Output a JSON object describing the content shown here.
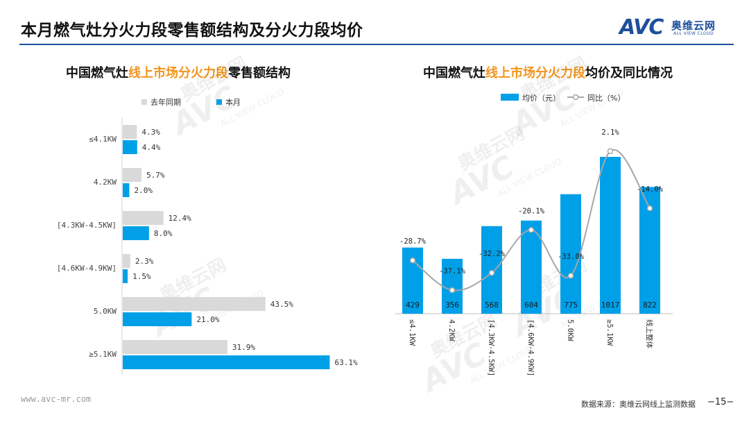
{
  "page": {
    "title": "本月燃气灶分火力段零售额结构及分火力段均价",
    "footer_url": "www.avc-mr.com",
    "footer_source": "数据来源：奥维云网线上监测数据",
    "page_number": "−15−"
  },
  "logo": {
    "mark": "AVC",
    "name_cn": "奥维云网",
    "name_en": "ALL VIEW CLOUD"
  },
  "watermark": {
    "name_cn": "奥维云网",
    "mark": "AVC",
    "name_en": "ALL VIEW CLOUD"
  },
  "colors": {
    "accent": "#00a0e9",
    "last_year": "#d9d9d9",
    "line": "#a6a6a6",
    "title_highlight": "#f2941c",
    "brand": "#1d4f9c"
  },
  "left_chart": {
    "title_pre": "中国燃气灶",
    "title_hl": "线上市场分火力段",
    "title_post": "零售额结构"
  },
  "right_chart": {
    "title_pre": "中国燃气灶",
    "title_hl": "线上市场分火力段",
    "title_post": "均价及同比情况"
  },
  "chart_data": [
    {
      "type": "bar",
      "orientation": "horizontal",
      "categories": [
        "≤4.1KW",
        "4.2KW",
        "[4.3KW-4.5KW]",
        "[4.6KW-4.9KW]",
        "5.0KW",
        "≥5.1KW"
      ],
      "series": [
        {
          "name": "去年同期",
          "values": [
            4.3,
            5.7,
            12.4,
            2.3,
            43.5,
            31.9
          ],
          "labels": [
            "4.3%",
            "5.7%",
            "12.4%",
            "2.3%",
            "43.5%",
            "31.9%"
          ],
          "color": "#d9d9d9"
        },
        {
          "name": "本月",
          "values": [
            4.4,
            2.0,
            8.0,
            1.5,
            21.0,
            63.1
          ],
          "labels": [
            "4.4%",
            "2.0%",
            "8.0%",
            "1.5%",
            "21.0%",
            "63.1%"
          ],
          "color": "#00a0e9"
        }
      ],
      "unit": "%",
      "legend": "top-left"
    },
    {
      "type": "bar",
      "categories": [
        "≤4.1KW",
        "4.2KW",
        "[4.3KW-4.5KW]",
        "[4.6KW-4.9KW]",
        "5.0KW",
        "≥5.1KW",
        "线上整体"
      ],
      "series": [
        {
          "name": "均价（元）",
          "type": "bar",
          "values": [
            429,
            356,
            568,
            604,
            775,
            1017,
            822
          ],
          "labels": [
            "429",
            "356",
            "568",
            "604",
            "775",
            "1017",
            "822"
          ],
          "color": "#00a0e9"
        },
        {
          "name": "同比（%）",
          "type": "line",
          "values": [
            -28.7,
            -37.1,
            -32.2,
            -20.1,
            -33.0,
            2.1,
            -14.0
          ],
          "labels": [
            "-28.7%",
            "-37.1%",
            "-32.2%",
            "-20.1%",
            "-33.0%",
            "2.1%",
            "-14.0%"
          ],
          "color": "#a6a6a6"
        }
      ],
      "legend": "top"
    }
  ]
}
